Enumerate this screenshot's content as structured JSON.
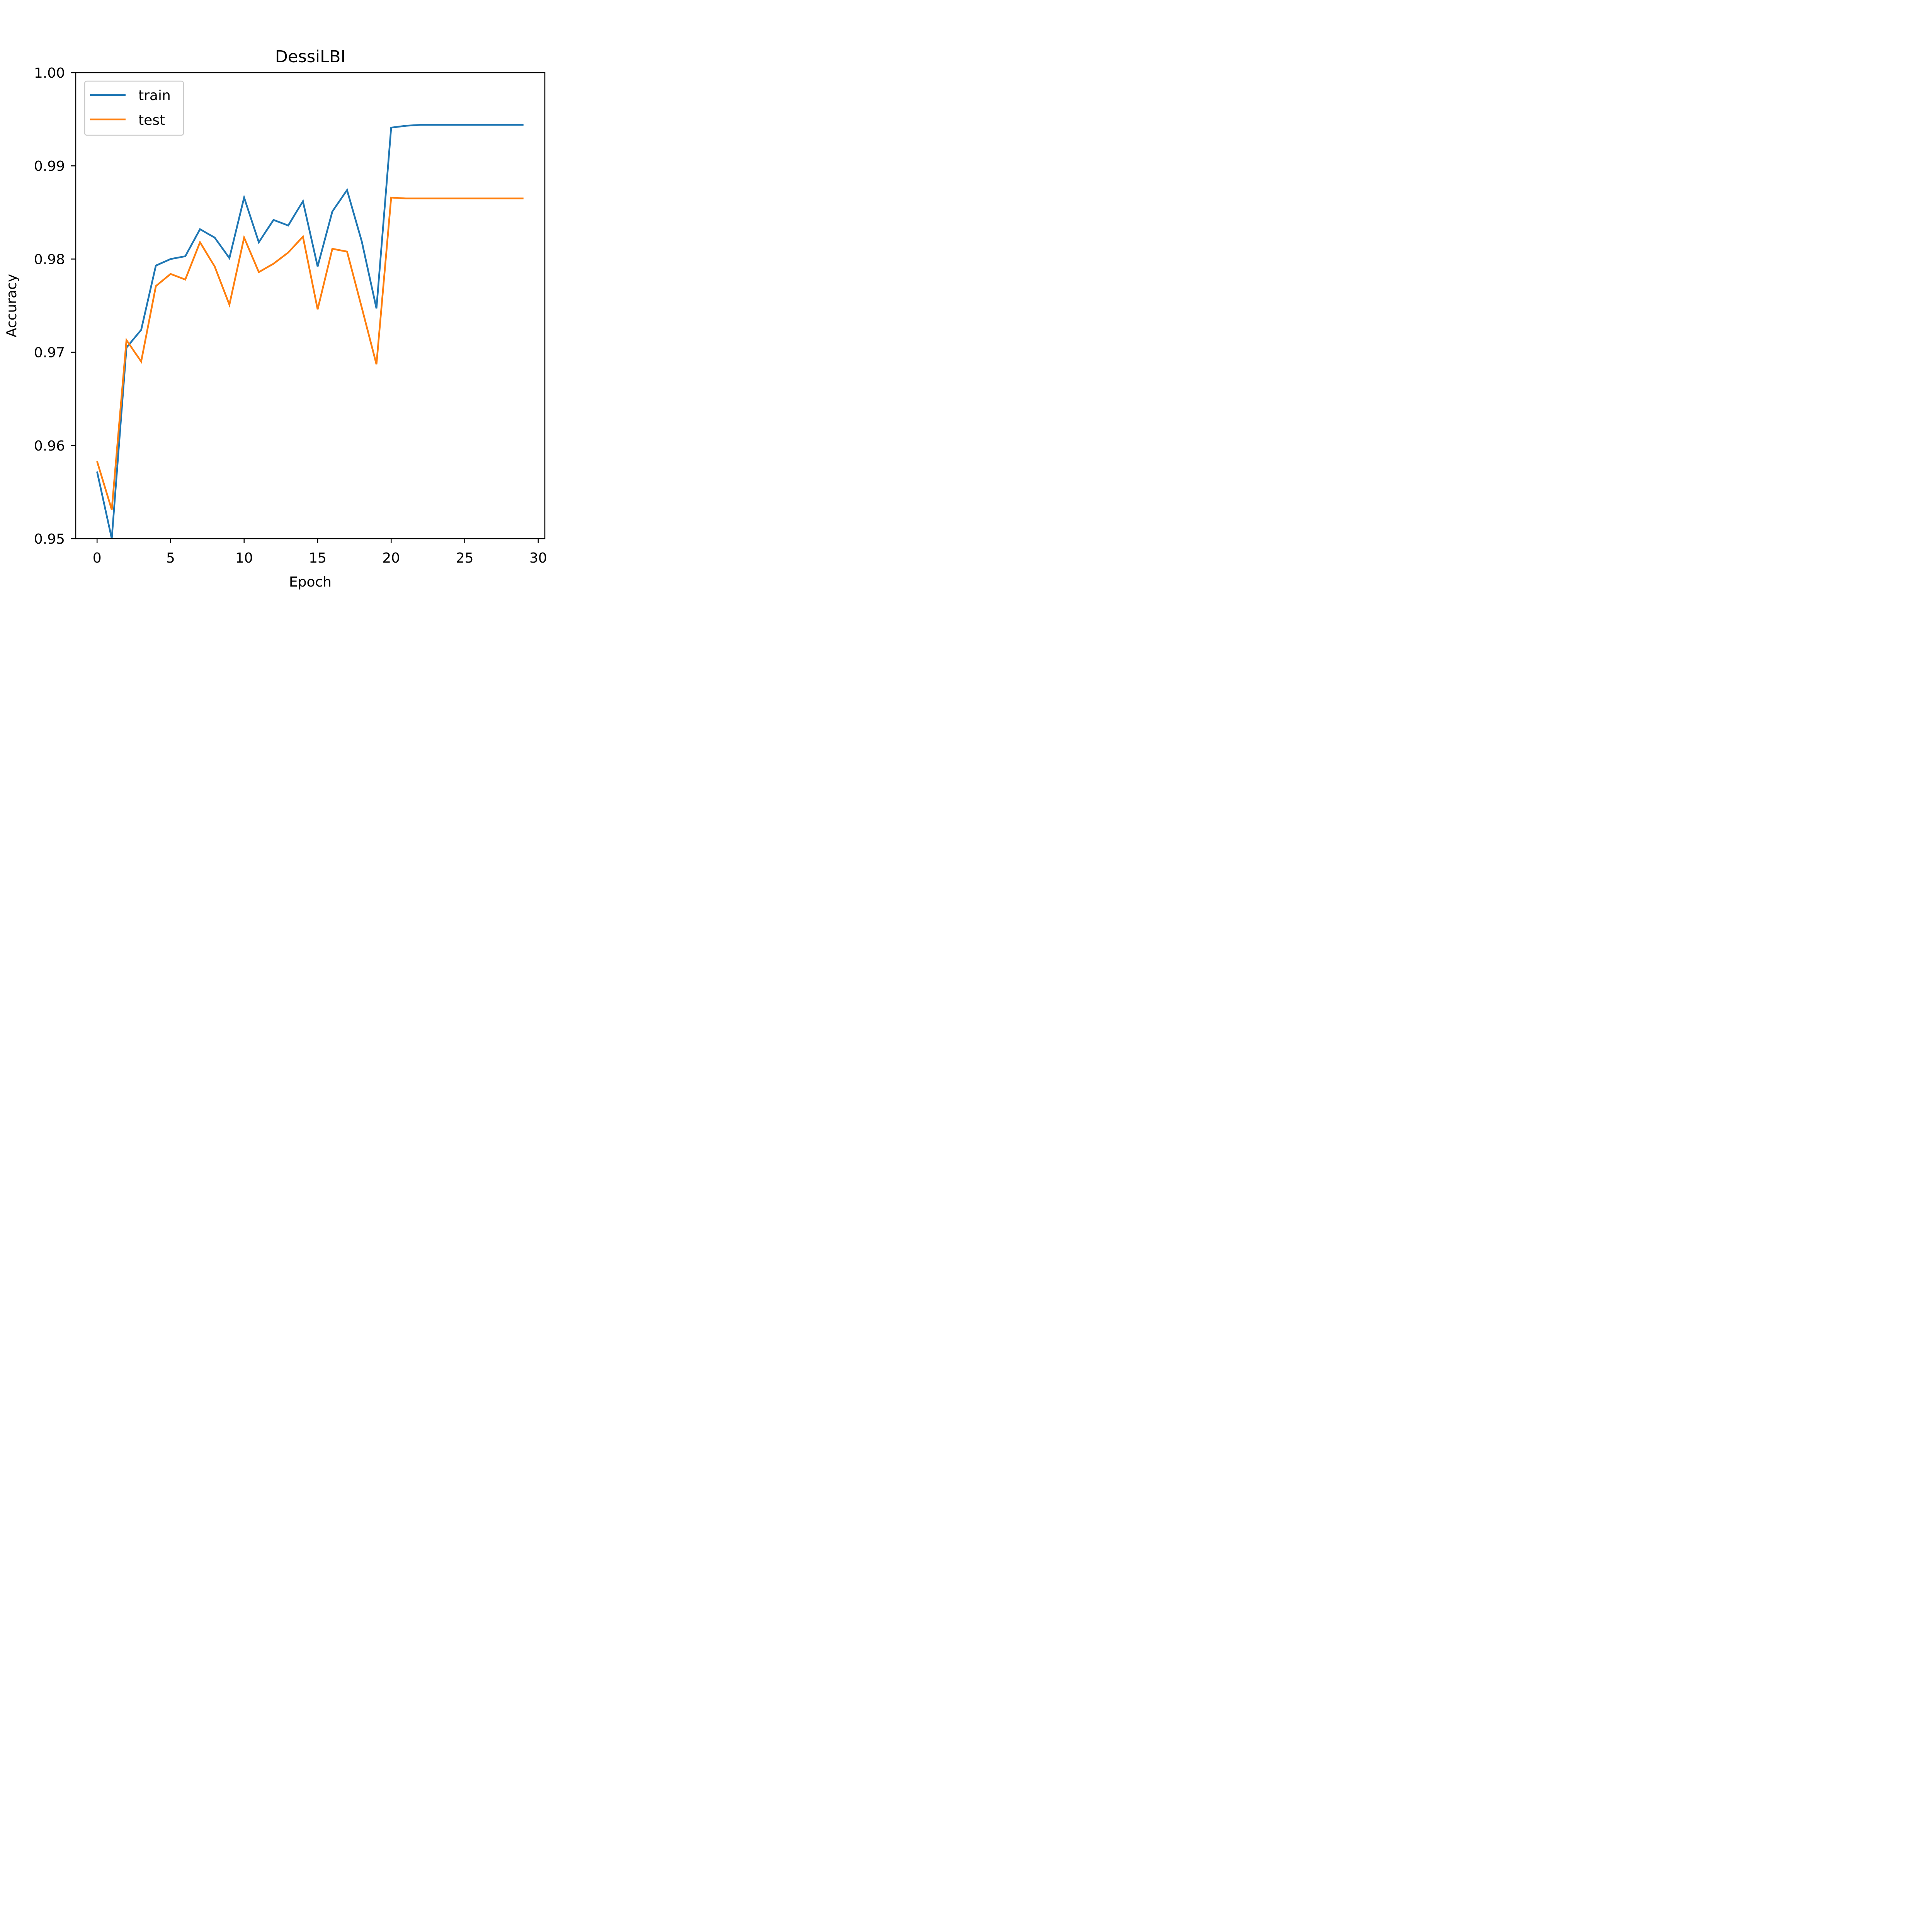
{
  "chart_data": {
    "type": "line",
    "title": "DessiLBI",
    "xlabel": "Epoch",
    "ylabel": "Accuracy",
    "xlim": [
      -1.45,
      30.45
    ],
    "ylim": [
      0.95,
      1.0
    ],
    "xticks": [
      0,
      5,
      10,
      15,
      20,
      25,
      30
    ],
    "xtick_labels": [
      "0",
      "5",
      "10",
      "15",
      "20",
      "25",
      "30"
    ],
    "yticks": [
      0.95,
      0.96,
      0.97,
      0.98,
      0.99,
      1.0
    ],
    "ytick_labels": [
      "0.95",
      "0.96",
      "0.97",
      "0.98",
      "0.99",
      "1.00"
    ],
    "grid": false,
    "legend_position": "top-left",
    "x": [
      0,
      1,
      2,
      3,
      4,
      5,
      6,
      7,
      8,
      9,
      10,
      11,
      12,
      13,
      14,
      15,
      16,
      17,
      18,
      19,
      20,
      21,
      22,
      23,
      24,
      25,
      26,
      27,
      28,
      29
    ],
    "series": [
      {
        "name": "train",
        "color": "#1f77b4",
        "values": [
          0.9572,
          0.95,
          0.9705,
          0.9724,
          0.9793,
          0.98,
          0.9803,
          0.9832,
          0.9823,
          0.9801,
          0.9866,
          0.9818,
          0.9842,
          0.9836,
          0.9862,
          0.9792,
          0.9851,
          0.9874,
          0.9819,
          0.9747,
          0.9941,
          0.9943,
          0.9944,
          0.9944,
          0.9944,
          0.9944,
          0.9944,
          0.9944,
          0.9944,
          0.9944
        ]
      },
      {
        "name": "test",
        "color": "#ff7f0e",
        "values": [
          0.9583,
          0.9531,
          0.9713,
          0.969,
          0.9771,
          0.9784,
          0.9778,
          0.9818,
          0.9792,
          0.9751,
          0.9823,
          0.9786,
          0.9795,
          0.9807,
          0.9824,
          0.9746,
          0.9811,
          0.9808,
          0.9748,
          0.9687,
          0.9866,
          0.9865,
          0.9865,
          0.9865,
          0.9865,
          0.9865,
          0.9865,
          0.9865,
          0.9865,
          0.9865
        ]
      }
    ]
  }
}
